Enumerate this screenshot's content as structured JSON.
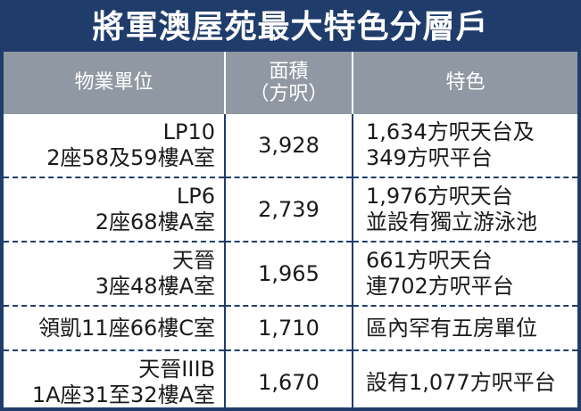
{
  "title": "將軍澳屋苑最大特色分層戶",
  "headers": {
    "unit": "物業單位",
    "area_line1": "面積",
    "area_line2": "（方呎）",
    "feature": "特色"
  },
  "rows": [
    {
      "unit_line1": "LP10",
      "unit_line2": "2座58及59樓A室",
      "area": "3,928",
      "feature_line1": "1,634方呎天台及",
      "feature_line2": "349方呎平台"
    },
    {
      "unit_line1": "LP6",
      "unit_line2": "2座68樓A室",
      "area": "2,739",
      "feature_line1": "1,976方呎天台",
      "feature_line2": "並設有獨立游泳池"
    },
    {
      "unit_line1": "天晉",
      "unit_line2": "3座48樓A室",
      "area": "1,965",
      "feature_line1": "661方呎天台",
      "feature_line2": "連702方呎平台"
    },
    {
      "unit_line1": "領凱11座66樓C室",
      "area": "1,710",
      "feature_line1": "區內罕有五房單位"
    },
    {
      "unit_line1": "天晉IIIB",
      "unit_line2": "1A座31至32樓A室",
      "area": "1,670",
      "feature_line1": "設有1,077方呎平台"
    }
  ]
}
